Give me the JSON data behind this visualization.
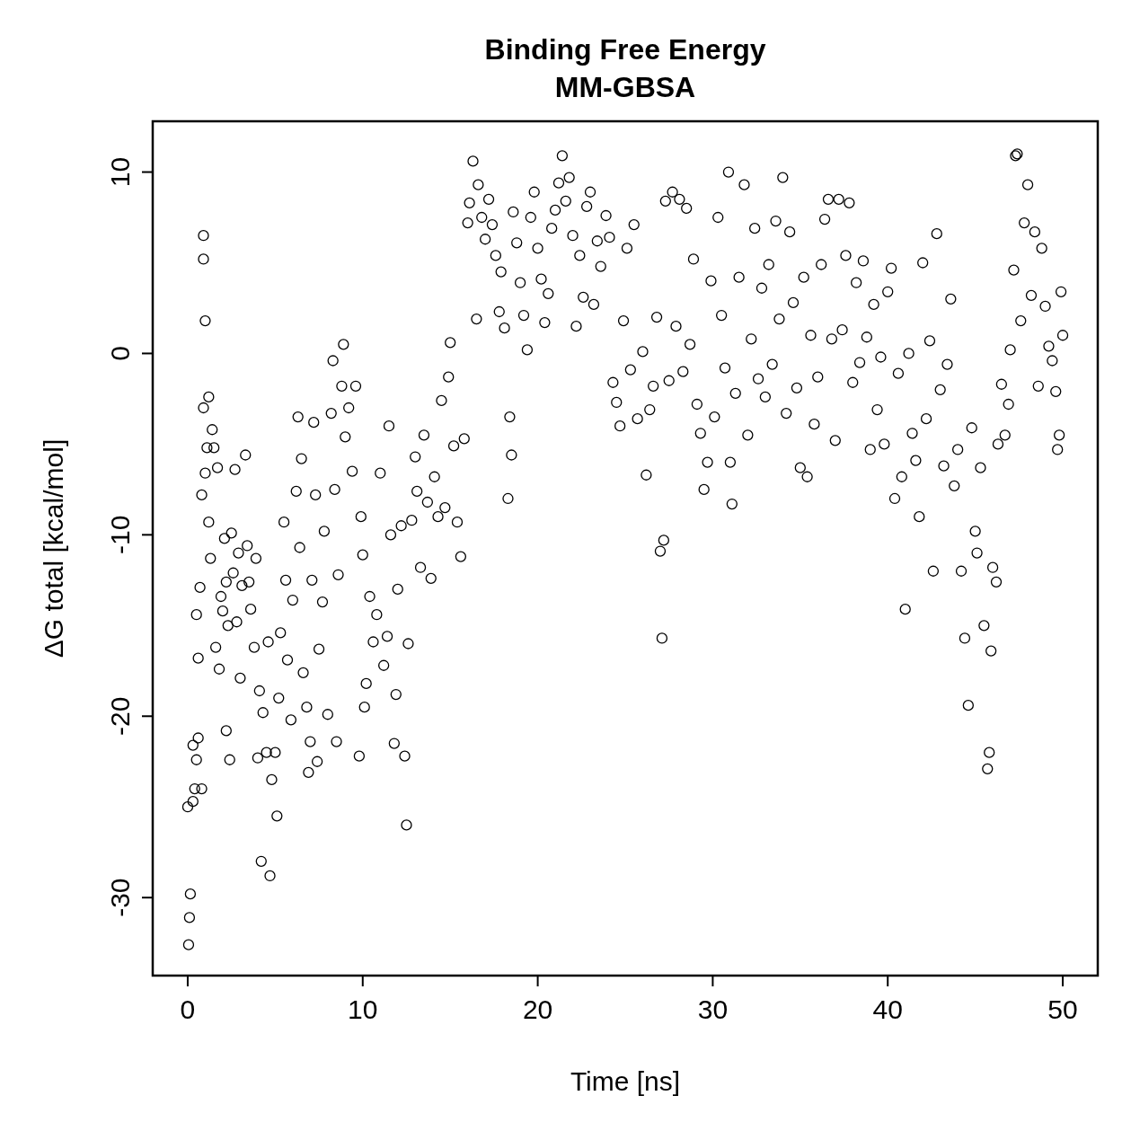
{
  "chart_data": {
    "type": "scatter",
    "title": "Binding Free Energy",
    "subtitle": "MM-GBSA",
    "xlabel": "Time [ns]",
    "ylabel": "ΔG total [kcal/mol]",
    "xlim": [
      -2,
      52
    ],
    "ylim": [
      -34.3,
      12.8
    ],
    "xticks": [
      0,
      10,
      20,
      30,
      40,
      50
    ],
    "yticks": [
      -30,
      -20,
      -10,
      0,
      10
    ],
    "marker": "circle",
    "series": [
      {
        "color": "#000000",
        "x": [
          0,
          0.05,
          0.1,
          0.15,
          0.3,
          0.3,
          0.4,
          0.5,
          0.5,
          0.6,
          0.6,
          0.7,
          0.8,
          0.8,
          0.9,
          0.9,
          0.9,
          1.0,
          1.0,
          1.1,
          1.2,
          1.2,
          1.3,
          1.4,
          1.5,
          1.6,
          1.7,
          1.8,
          1.9,
          2.0,
          2.1,
          2.2,
          2.2,
          2.3,
          2.4,
          2.5,
          2.6,
          2.7,
          2.8,
          2.9,
          3.0,
          3.1,
          3.3,
          3.4,
          3.5,
          3.6,
          3.8,
          3.9,
          4.0,
          4.1,
          4.2,
          4.3,
          4.5,
          4.6,
          4.7,
          4.8,
          5.0,
          5.1,
          5.2,
          5.3,
          5.5,
          5.6,
          5.7,
          5.9,
          6.0,
          6.2,
          6.3,
          6.4,
          6.5,
          6.6,
          6.8,
          6.9,
          7.0,
          7.1,
          7.2,
          7.3,
          7.4,
          7.5,
          7.7,
          7.8,
          8.0,
          8.2,
          8.3,
          8.4,
          8.5,
          8.6,
          8.8,
          8.9,
          9.0,
          9.2,
          9.4,
          9.6,
          9.8,
          9.9,
          10.0,
          10.1,
          10.2,
          10.4,
          10.6,
          10.8,
          11.0,
          11.2,
          11.4,
          11.5,
          11.6,
          11.8,
          11.9,
          12.0,
          12.2,
          12.4,
          12.5,
          12.6,
          12.8,
          13.0,
          13.1,
          13.3,
          13.5,
          13.7,
          13.9,
          14.1,
          14.3,
          14.5,
          14.7,
          14.9,
          15.0,
          15.2,
          15.4,
          15.6,
          15.8,
          16.0,
          16.1,
          16.3,
          16.5,
          16.6,
          16.8,
          17.0,
          17.2,
          17.4,
          17.6,
          17.8,
          17.9,
          18.1,
          18.3,
          18.4,
          18.5,
          18.6,
          18.8,
          19.0,
          19.2,
          19.4,
          19.6,
          19.8,
          20.0,
          20.2,
          20.4,
          20.6,
          20.8,
          21.0,
          21.2,
          21.4,
          21.6,
          21.8,
          22.0,
          22.2,
          22.4,
          22.6,
          22.8,
          23.0,
          23.2,
          23.4,
          23.6,
          23.9,
          24.1,
          24.3,
          24.5,
          24.7,
          24.9,
          25.1,
          25.3,
          25.5,
          25.7,
          26.0,
          26.2,
          26.4,
          26.6,
          26.8,
          27.0,
          27.1,
          27.2,
          27.3,
          27.5,
          27.7,
          27.9,
          28.1,
          28.3,
          28.5,
          28.7,
          28.9,
          29.1,
          29.3,
          29.5,
          29.7,
          29.9,
          30.1,
          30.3,
          30.5,
          30.7,
          30.9,
          31.0,
          31.1,
          31.3,
          31.5,
          31.8,
          32.0,
          32.2,
          32.4,
          32.6,
          32.8,
          33.0,
          33.2,
          33.4,
          33.6,
          33.8,
          34.0,
          34.2,
          34.4,
          34.6,
          34.8,
          35.0,
          35.2,
          35.4,
          35.6,
          35.8,
          36.0,
          36.2,
          36.4,
          36.6,
          36.8,
          37.0,
          37.2,
          37.4,
          37.6,
          37.8,
          38.0,
          38.2,
          38.4,
          38.6,
          38.8,
          39.0,
          39.2,
          39.4,
          39.6,
          39.8,
          40.0,
          40.2,
          40.4,
          40.6,
          40.8,
          41.0,
          41.2,
          41.4,
          41.6,
          41.8,
          42.0,
          42.2,
          42.4,
          42.6,
          42.8,
          43.0,
          43.2,
          43.4,
          43.6,
          43.8,
          44.0,
          44.2,
          44.4,
          44.6,
          44.8,
          45.0,
          45.1,
          45.3,
          45.5,
          45.7,
          45.8,
          45.9,
          46.0,
          46.2,
          46.3,
          46.5,
          46.7,
          46.9,
          47.0,
          47.2,
          47.3,
          47.4,
          47.6,
          47.8,
          48.0,
          48.2,
          48.4,
          48.6,
          48.8,
          49.0,
          49.2,
          49.4,
          49.6,
          49.7,
          49.8,
          49.9,
          50.0
        ],
        "values": [
          -25,
          -32.6,
          -31.1,
          -29.8,
          -24.7,
          -21.6,
          -24,
          -22.4,
          -14.4,
          -16.8,
          -21.2,
          -12.9,
          -24,
          -7.8,
          -3,
          5.2,
          6.5,
          1.8,
          -6.6,
          -5.2,
          -2.4,
          -9.3,
          -11.3,
          -4.2,
          -5.2,
          -16.2,
          -6.3,
          -17.4,
          -13.4,
          -14.2,
          -10.2,
          -12.6,
          -20.8,
          -15,
          -22.4,
          -9.9,
          -12.1,
          -6.4,
          -14.8,
          -11,
          -17.9,
          -12.8,
          -5.6,
          -10.6,
          -12.6,
          -14.1,
          -16.2,
          -11.3,
          -22.3,
          -18.6,
          -28,
          -19.8,
          -22,
          -15.9,
          -28.8,
          -23.5,
          -22,
          -25.5,
          -19,
          -15.4,
          -9.3,
          -12.5,
          -16.9,
          -20.2,
          -13.6,
          -7.6,
          -3.5,
          -10.7,
          -5.8,
          -17.6,
          -19.5,
          -23.1,
          -21.4,
          -12.5,
          -3.8,
          -7.8,
          -22.5,
          -16.3,
          -13.7,
          -9.8,
          -19.9,
          -3.3,
          -0.4,
          -7.5,
          -21.4,
          -12.2,
          -1.8,
          0.5,
          -4.6,
          -3,
          -6.5,
          -1.8,
          -22.2,
          -9,
          -11.1,
          -19.5,
          -18.2,
          -13.4,
          -15.9,
          -14.4,
          -6.6,
          -17.2,
          -15.6,
          -4,
          -10,
          -21.5,
          -18.8,
          -13,
          -9.5,
          -22.2,
          -26,
          -16,
          -9.2,
          -5.7,
          -7.6,
          -11.8,
          -4.5,
          -8.2,
          -12.4,
          -6.8,
          -9,
          -2.6,
          -8.5,
          -1.3,
          0.6,
          -5.1,
          -9.3,
          -11.2,
          -4.7,
          7.2,
          8.3,
          10.6,
          1.9,
          9.3,
          7.5,
          6.3,
          8.5,
          7.1,
          5.4,
          2.3,
          4.5,
          1.4,
          -8,
          -3.5,
          -5.6,
          7.8,
          6.1,
          3.9,
          2.1,
          0.2,
          7.5,
          8.9,
          5.8,
          4.1,
          1.7,
          3.3,
          6.9,
          7.9,
          9.4,
          10.9,
          8.4,
          9.7,
          6.5,
          1.5,
          5.4,
          3.1,
          8.1,
          8.9,
          2.7,
          6.2,
          4.8,
          7.6,
          6.4,
          -1.6,
          -2.7,
          -4,
          1.8,
          5.8,
          -0.9,
          7.1,
          -3.6,
          0.1,
          -6.7,
          -3.1,
          -1.8,
          2,
          -10.9,
          -15.7,
          -10.3,
          8.4,
          -1.5,
          8.9,
          1.5,
          8.5,
          -1,
          8,
          0.5,
          5.2,
          -2.8,
          -4.4,
          -7.5,
          -6,
          4,
          -3.5,
          7.5,
          2.1,
          -0.8,
          10,
          -6,
          -8.3,
          -2.2,
          4.2,
          9.3,
          -4.5,
          0.8,
          6.9,
          -1.4,
          3.6,
          -2.4,
          4.9,
          -0.6,
          7.3,
          1.9,
          9.7,
          -3.3,
          6.7,
          2.8,
          -1.9,
          -6.3,
          4.2,
          -6.8,
          1,
          -3.9,
          -1.3,
          4.9,
          7.4,
          8.5,
          0.8,
          -4.8,
          8.5,
          1.3,
          5.4,
          8.3,
          -1.6,
          3.9,
          -0.5,
          5.1,
          0.9,
          -5.3,
          2.7,
          -3.1,
          -0.2,
          -5,
          3.4,
          4.7,
          -8,
          -1.1,
          -6.8,
          -14.1,
          0,
          -4.4,
          -5.9,
          -9,
          5,
          -3.6,
          0.7,
          -12,
          6.6,
          -2,
          -6.2,
          -0.6,
          3,
          -7.3,
          -5.3,
          -12,
          -15.7,
          -19.4,
          -4.1,
          -9.8,
          -11,
          -6.3,
          -15,
          -22.9,
          -22,
          -16.4,
          -11.8,
          -12.6,
          -5,
          -1.7,
          -4.5,
          -2.8,
          0.2,
          4.6,
          10.9,
          11,
          1.8,
          7.2,
          9.3,
          3.2,
          6.7,
          -1.8,
          5.8,
          2.6,
          0.4,
          -0.4,
          -2.1,
          -5.3,
          -4.5,
          3.4,
          1
        ]
      }
    ]
  }
}
